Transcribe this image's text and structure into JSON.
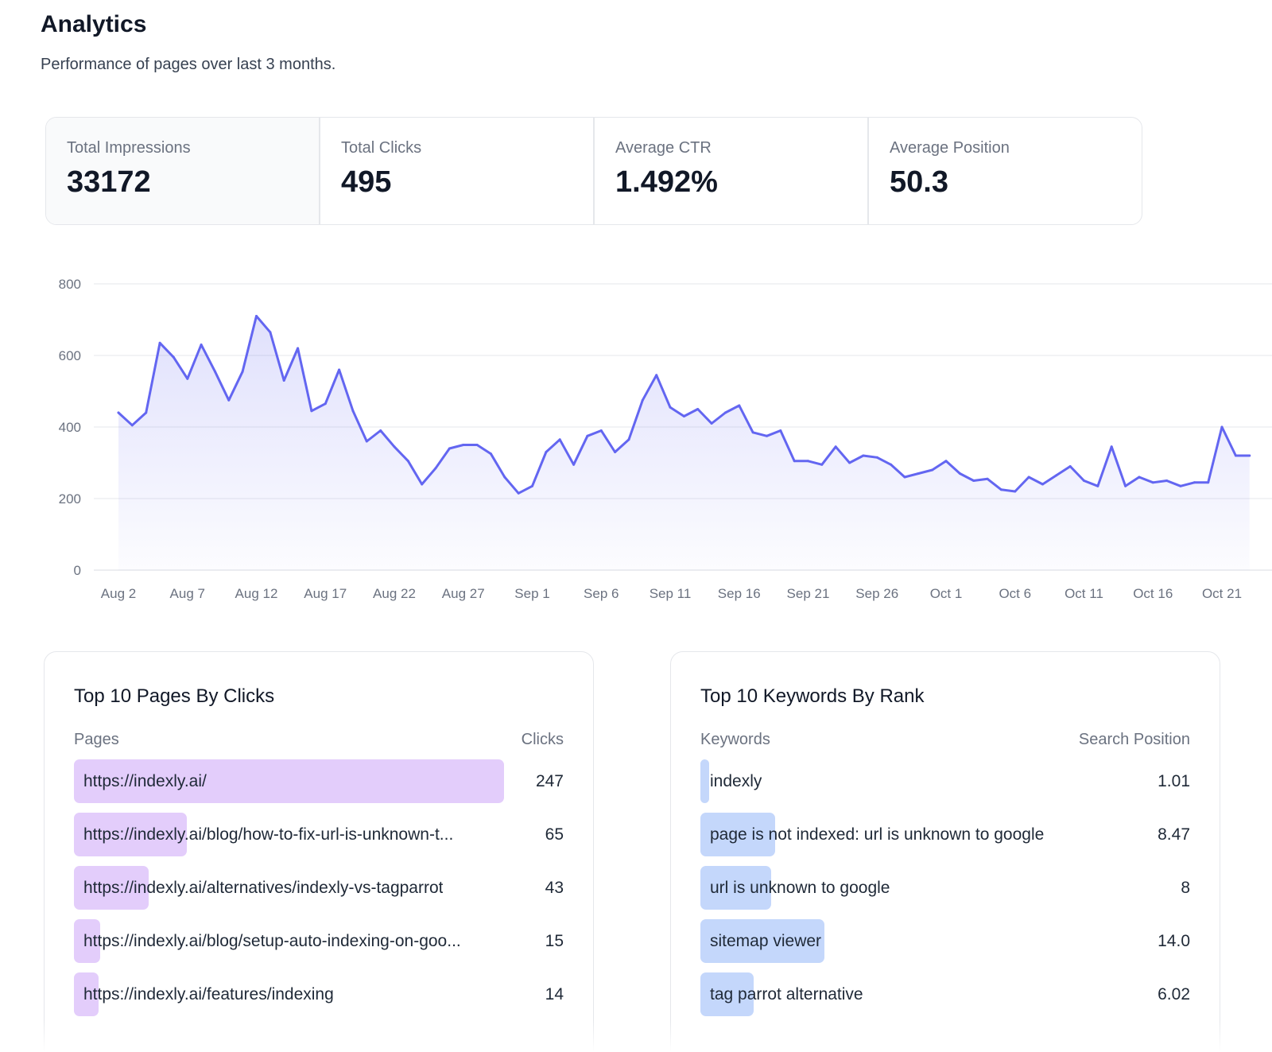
{
  "header": {
    "title": "Analytics",
    "subtitle": "Performance of pages over last 3 months."
  },
  "kpis": [
    {
      "label": "Total Impressions",
      "value": "33172"
    },
    {
      "label": "Total Clicks",
      "value": "495"
    },
    {
      "label": "Average CTR",
      "value": "1.492%"
    },
    {
      "label": "Average Position",
      "value": "50.3"
    }
  ],
  "colors": {
    "line": "#6366f1",
    "pages_bar": "#e3cdfb",
    "keywords_bar": "#c4d7fb",
    "grid": "#e5e7eb"
  },
  "chart_data": {
    "type": "area",
    "ylim": [
      0,
      800
    ],
    "y_ticks": [
      "0",
      "200",
      "400",
      "600",
      "800"
    ],
    "x_tick_labels": [
      "Aug 2",
      "Aug 7",
      "Aug 12",
      "Aug 17",
      "Aug 22",
      "Aug 27",
      "Sep 1",
      "Sep 6",
      "Sep 11",
      "Sep 16",
      "Sep 21",
      "Sep 26",
      "Oct 1",
      "Oct 6",
      "Oct 11",
      "Oct 16",
      "Oct 21"
    ],
    "x_start": "Aug 2",
    "grid": true,
    "series": [
      {
        "values": [
          440,
          405,
          440,
          635,
          595,
          535,
          630,
          555,
          475,
          555,
          710,
          665,
          530,
          620,
          445,
          465,
          560,
          445,
          360,
          390,
          345,
          305,
          240,
          285,
          340,
          350,
          350,
          325,
          260,
          215,
          235,
          330,
          365,
          295,
          375,
          390,
          330,
          365,
          475,
          545,
          455,
          430,
          450,
          410,
          440,
          460,
          385,
          375,
          390,
          305,
          305,
          295,
          345,
          300,
          320,
          315,
          295,
          260,
          270,
          280,
          305,
          270,
          250,
          255,
          225,
          220,
          260,
          240,
          265,
          290,
          250,
          235,
          345,
          235,
          260,
          245,
          250,
          235,
          245,
          245,
          400,
          320,
          320
        ]
      }
    ]
  },
  "pages_card": {
    "title": "Top 10 Pages By Clicks",
    "col_left": "Pages",
    "col_right": "Clicks",
    "max_value": 247,
    "rows": [
      {
        "label": "https://indexly.ai/",
        "value": "247",
        "n": 247
      },
      {
        "label": "https://indexly.ai/blog/how-to-fix-url-is-unknown-t...",
        "value": "65",
        "n": 65
      },
      {
        "label": "https://indexly.ai/alternatives/indexly-vs-tagparrot",
        "value": "43",
        "n": 43
      },
      {
        "label": "https://indexly.ai/blog/setup-auto-indexing-on-goo...",
        "value": "15",
        "n": 15
      },
      {
        "label": "https://indexly.ai/features/indexing",
        "value": "14",
        "n": 14
      }
    ]
  },
  "keywords_card": {
    "title": "Top 10 Keywords By Rank",
    "col_left": "Keywords",
    "col_right": "Search Position",
    "max_value": 55.4,
    "rows": [
      {
        "label": "indexly",
        "value": "1.01",
        "n": 1.01
      },
      {
        "label": "page is not indexed: url is unknown to google",
        "value": "8.47",
        "n": 8.47
      },
      {
        "label": "url is unknown to google",
        "value": "8",
        "n": 8
      },
      {
        "label": "sitemap viewer",
        "value": "14.0",
        "n": 14.0
      },
      {
        "label": "tag parrot alternative",
        "value": "6.02",
        "n": 6.02
      }
    ]
  }
}
